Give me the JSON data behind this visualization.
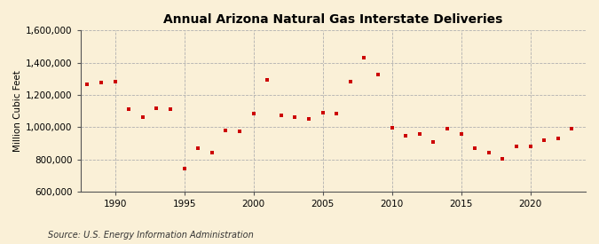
{
  "title": "Annual Arizona Natural Gas Interstate Deliveries",
  "ylabel": "Million Cubic Feet",
  "source": "Source: U.S. Energy Information Administration",
  "background_color": "#faf0d7",
  "plot_bg_color": "#faf0d7",
  "marker_color": "#cc0000",
  "years": [
    1988,
    1989,
    1990,
    1991,
    1992,
    1993,
    1994,
    1995,
    1996,
    1997,
    1998,
    1999,
    2000,
    2001,
    2002,
    2003,
    2004,
    2005,
    2006,
    2007,
    2008,
    2009,
    2010,
    2011,
    2012,
    2013,
    2014,
    2015,
    2016,
    2017,
    2018,
    2019,
    2020,
    2021,
    2022,
    2023
  ],
  "values": [
    1268000,
    1275000,
    1285000,
    1110000,
    1065000,
    1120000,
    1115000,
    745000,
    870000,
    845000,
    980000,
    975000,
    1085000,
    1295000,
    1075000,
    1065000,
    1050000,
    1090000,
    1085000,
    1285000,
    1430000,
    1325000,
    995000,
    945000,
    960000,
    910000,
    990000,
    960000,
    870000,
    845000,
    805000,
    880000,
    880000,
    920000,
    930000,
    990000
  ],
  "ylim": [
    600000,
    1600000
  ],
  "yticks": [
    600000,
    800000,
    1000000,
    1200000,
    1400000,
    1600000
  ],
  "xticks": [
    1990,
    1995,
    2000,
    2005,
    2010,
    2015,
    2020
  ],
  "xlim": [
    1987.5,
    2024
  ]
}
